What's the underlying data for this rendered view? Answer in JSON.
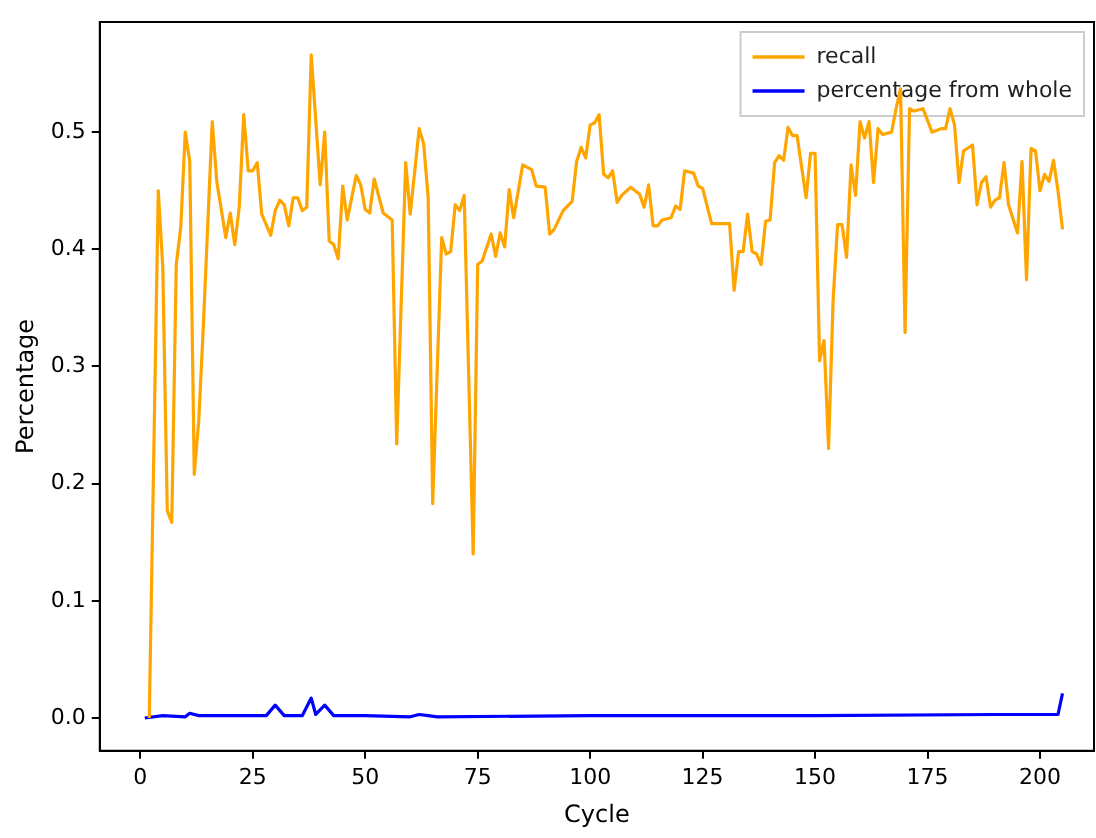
{
  "chart_data": {
    "type": "line",
    "xlabel": "Cycle",
    "ylabel": "Percentage",
    "legend": "top right",
    "grid": false,
    "marker": "none",
    "line_style": "solid",
    "xlim": [
      -9,
      212
    ],
    "xticks": [
      0,
      25,
      50,
      75,
      100,
      125,
      150,
      175,
      200
    ],
    "ylim": [
      -0.028,
      0.594
    ],
    "yticks": [
      {
        "value": 0,
        "label": "0.0"
      },
      {
        "value": 0.1,
        "label": "0.1"
      },
      {
        "value": 0.2,
        "label": "0.2"
      },
      {
        "value": 0.3,
        "label": "0.3"
      },
      {
        "value": 0.4,
        "label": "0.4"
      },
      {
        "value": 0.5,
        "label": "0.5"
      }
    ],
    "series": [
      {
        "name": "recall",
        "color": "#ffa500",
        "x": [
          2,
          4,
          5,
          6,
          7,
          8,
          9,
          10,
          11,
          12,
          13,
          14,
          16,
          17,
          19,
          20,
          21,
          22,
          23,
          24,
          25,
          26,
          27,
          29,
          30,
          31,
          32,
          33,
          34,
          35,
          36,
          37,
          38,
          40,
          41,
          42,
          43,
          44,
          45,
          46,
          48,
          49,
          50,
          51,
          52,
          54,
          56,
          57,
          59,
          60,
          62,
          63,
          64,
          65,
          67,
          68,
          69,
          70,
          71,
          72,
          74,
          75,
          76,
          78,
          79,
          80,
          81,
          82,
          83,
          85,
          87,
          88,
          90,
          91,
          92,
          94,
          96,
          97,
          98,
          99,
          100,
          101,
          102,
          103,
          104,
          105,
          106,
          107,
          109,
          111,
          112,
          113,
          114,
          115,
          116,
          118,
          119,
          120,
          121,
          123,
          124,
          125,
          127,
          131,
          132,
          133,
          134,
          135,
          136,
          137,
          138,
          139,
          140,
          141,
          142,
          143,
          144,
          145,
          146,
          148,
          149,
          150,
          151,
          152,
          153,
          154,
          155,
          156,
          157,
          158,
          159,
          160,
          161,
          162,
          163,
          164,
          165,
          167,
          168,
          169,
          170,
          171,
          172,
          174,
          176,
          178,
          179,
          180,
          181,
          182,
          183,
          185,
          186,
          187,
          188,
          189,
          190,
          191,
          192,
          193,
          195,
          196,
          197,
          198,
          199,
          200,
          201,
          202,
          203,
          204,
          205
        ],
        "values": [
          0.0,
          0.45,
          0.385,
          0.177,
          0.167,
          0.387,
          0.419,
          0.5,
          0.475,
          0.208,
          0.254,
          0.333,
          0.509,
          0.458,
          0.41,
          0.431,
          0.404,
          0.436,
          0.515,
          0.467,
          0.467,
          0.474,
          0.43,
          0.412,
          0.433,
          0.442,
          0.438,
          0.42,
          0.444,
          0.444,
          0.433,
          0.436,
          0.566,
          0.455,
          0.5,
          0.407,
          0.404,
          0.392,
          0.454,
          0.425,
          0.463,
          0.455,
          0.434,
          0.431,
          0.46,
          0.431,
          0.425,
          0.234,
          0.474,
          0.43,
          0.503,
          0.49,
          0.444,
          0.183,
          0.41,
          0.396,
          0.398,
          0.438,
          0.433,
          0.446,
          0.14,
          0.387,
          0.39,
          0.413,
          0.394,
          0.414,
          0.402,
          0.451,
          0.427,
          0.472,
          0.468,
          0.454,
          0.453,
          0.413,
          0.417,
          0.433,
          0.441,
          0.475,
          0.487,
          0.478,
          0.506,
          0.508,
          0.515,
          0.464,
          0.461,
          0.467,
          0.44,
          0.446,
          0.453,
          0.447,
          0.436,
          0.455,
          0.42,
          0.42,
          0.425,
          0.427,
          0.437,
          0.434,
          0.467,
          0.465,
          0.454,
          0.452,
          0.422,
          0.422,
          0.365,
          0.398,
          0.398,
          0.43,
          0.398,
          0.396,
          0.387,
          0.424,
          0.425,
          0.474,
          0.48,
          0.476,
          0.504,
          0.497,
          0.497,
          0.444,
          0.482,
          0.482,
          0.305,
          0.322,
          0.23,
          0.356,
          0.421,
          0.421,
          0.393,
          0.472,
          0.446,
          0.509,
          0.495,
          0.509,
          0.457,
          0.503,
          0.498,
          0.5,
          0.52,
          0.537,
          0.329,
          0.52,
          0.518,
          0.52,
          0.5,
          0.503,
          0.503,
          0.52,
          0.506,
          0.457,
          0.484,
          0.489,
          0.438,
          0.457,
          0.462,
          0.436,
          0.442,
          0.444,
          0.474,
          0.438,
          0.414,
          0.475,
          0.374,
          0.486,
          0.484,
          0.45,
          0.464,
          0.458,
          0.476,
          0.45,
          0.417
        ]
      },
      {
        "name": "percentage from whole",
        "color": "#0000ff",
        "x": [
          1,
          5,
          10,
          11,
          13,
          28,
          30,
          32,
          36,
          38,
          39,
          41,
          43,
          50,
          60,
          62,
          64,
          66,
          100,
          150,
          190,
          204,
          205
        ],
        "values": [
          0.0,
          0.002,
          0.001,
          0.004,
          0.002,
          0.002,
          0.011,
          0.002,
          0.002,
          0.017,
          0.003,
          0.011,
          0.002,
          0.002,
          0.001,
          0.003,
          0.002,
          0.001,
          0.002,
          0.002,
          0.003,
          0.003,
          0.021
        ]
      }
    ]
  }
}
